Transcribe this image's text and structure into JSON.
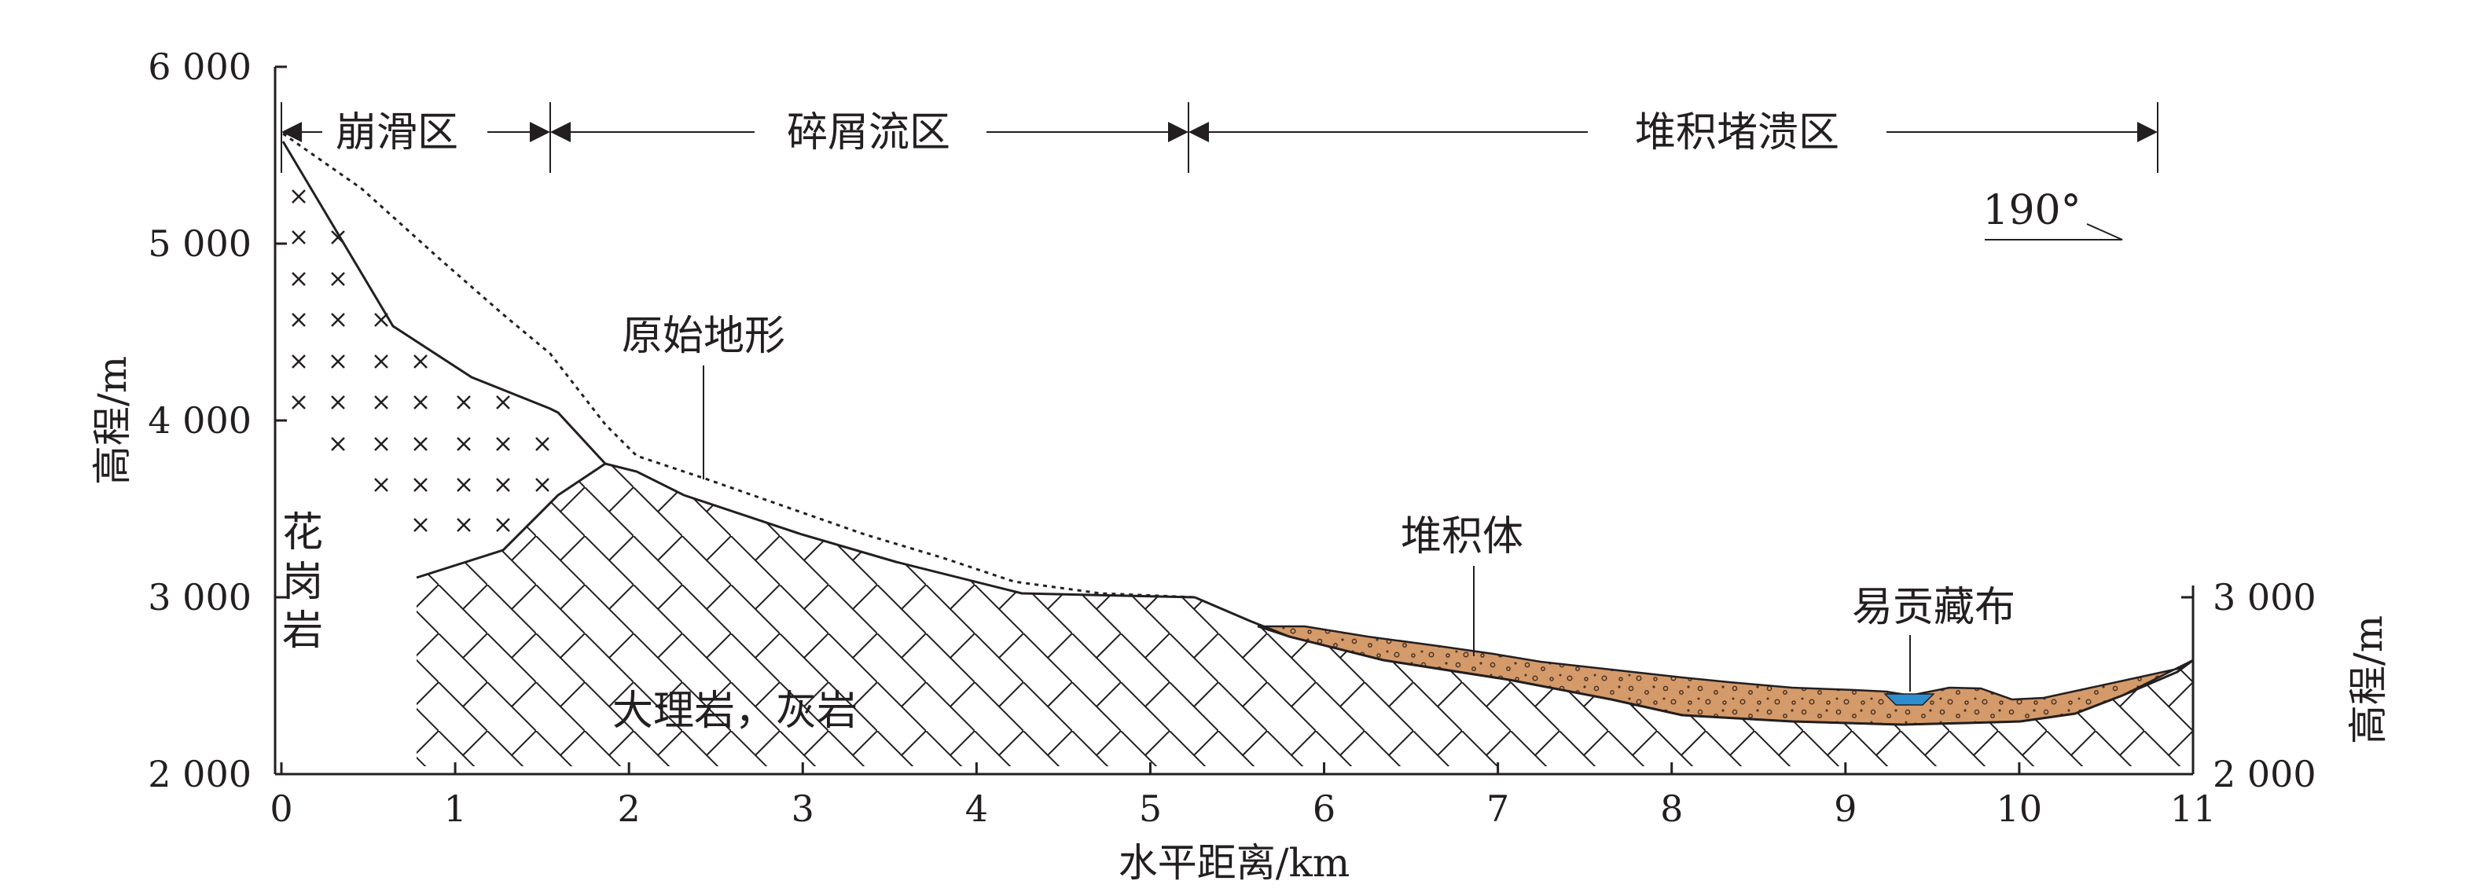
{
  "axes": {
    "x_title": "水平距离/km",
    "y_title_left": "高程/m",
    "y_title_right": "高程/m",
    "x_ticks": [
      "0",
      "1",
      "2",
      "3",
      "4",
      "5",
      "6",
      "7",
      "8",
      "9",
      "10",
      "11"
    ],
    "y_ticks_left": [
      "2 000",
      "3 000",
      "4 000",
      "5 000",
      "6 000"
    ],
    "y_ticks_right": [
      "2 000",
      "3 000"
    ],
    "x_range_km": [
      0,
      11
    ],
    "y_range_m": [
      2000,
      6000
    ]
  },
  "zones": [
    {
      "label": "崩滑区",
      "from_km": 0,
      "to_km": 1.6
    },
    {
      "label": "碎屑流区",
      "from_km": 1.6,
      "to_km": 5.3
    },
    {
      "label": "堆积堵溃区",
      "from_km": 5.3,
      "to_km": 10.85
    }
  ],
  "annotations": {
    "direction": "190°",
    "original_terrain": "原始地形",
    "deposit": "堆积体",
    "river": "易贡藏布",
    "granite": [
      "花",
      "岗",
      "岩"
    ],
    "marble": "大理岩，灰岩"
  },
  "colors": {
    "deposit_fill": "#d59a6a",
    "river_fill": "#2e8fd0",
    "line": "#231f20"
  }
}
